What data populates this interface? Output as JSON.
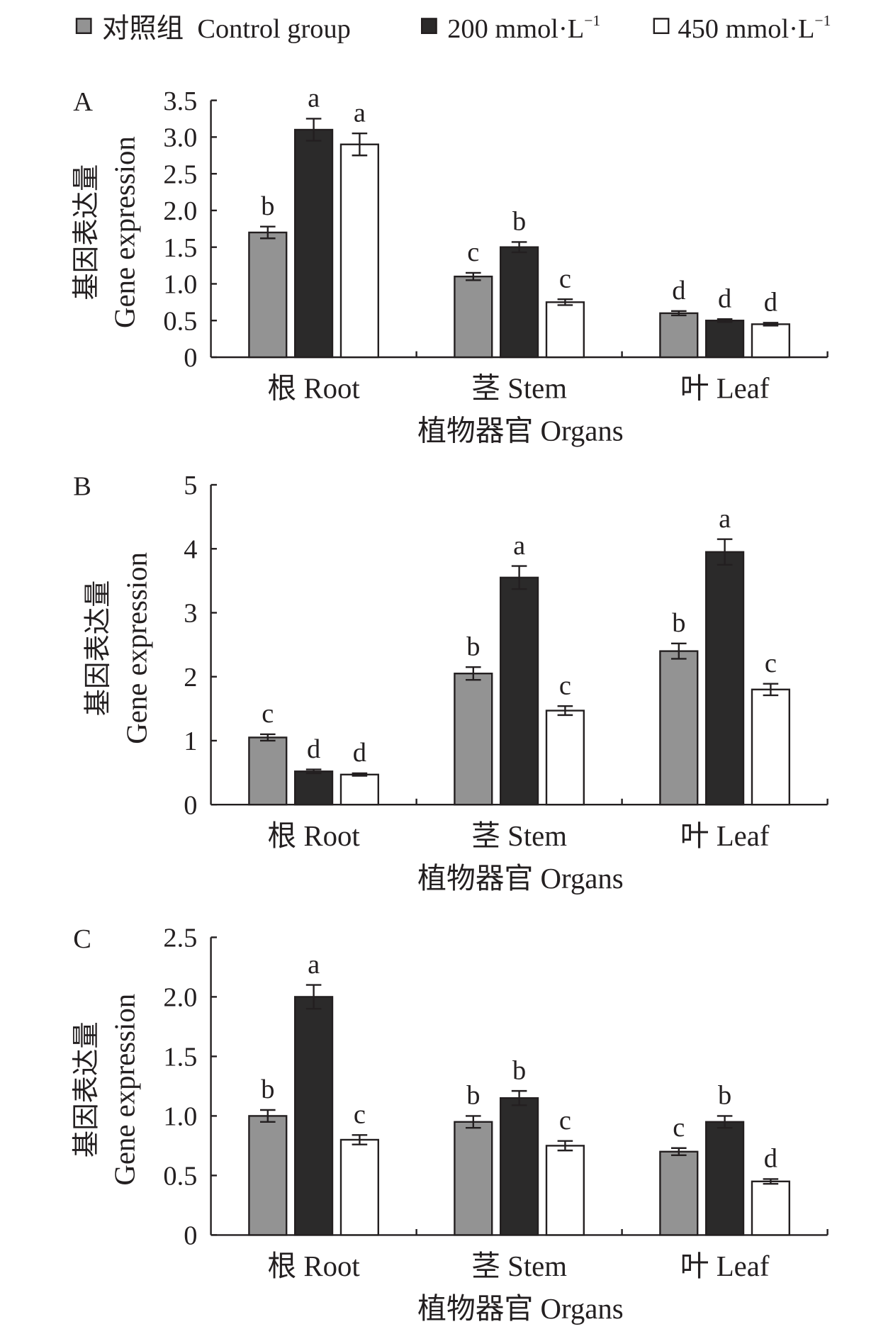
{
  "legend": [
    {
      "label": "对照组  Control group",
      "color": "#939393"
    },
    {
      "label": "200 mmol·L",
      "sup": "−1",
      "color": "#2b2a2a"
    },
    {
      "label": "450 mmol·L",
      "sup": "−1",
      "color": "#ffffff"
    }
  ],
  "chart_data": [
    {
      "type": "bar",
      "panel": "A",
      "ylabel_cn": "基因表达量",
      "ylabel": "Gene expression",
      "xlabel": "植物器官  Organs",
      "categories": [
        "根 Root",
        "茎 Stem",
        "叶 Leaf"
      ],
      "ylim": [
        0,
        3.5
      ],
      "yticks": [
        "0",
        "0.5",
        "1.0",
        "1.5",
        "2.0",
        "2.5",
        "3.0",
        "3.5"
      ],
      "series": [
        {
          "name": "Control group",
          "values": [
            1.7,
            1.1,
            0.6
          ],
          "errors": [
            0.08,
            0.05,
            0.03
          ],
          "letters": [
            "b",
            "c",
            "d"
          ]
        },
        {
          "name": "200 mmol·L−1",
          "values": [
            3.1,
            1.5,
            0.5
          ],
          "errors": [
            0.15,
            0.07,
            0.02
          ],
          "letters": [
            "a",
            "b",
            "d"
          ]
        },
        {
          "name": "450 mmol·L−1",
          "values": [
            2.9,
            0.75,
            0.45
          ],
          "errors": [
            0.15,
            0.04,
            0.02
          ],
          "letters": [
            "a",
            "c",
            "d"
          ]
        }
      ]
    },
    {
      "type": "bar",
      "panel": "B",
      "ylabel_cn": "基因表达量",
      "ylabel": "Gene expression",
      "xlabel": "植物器官  Organs",
      "categories": [
        "根 Root",
        "茎 Stem",
        "叶 Leaf"
      ],
      "ylim": [
        0,
        5
      ],
      "yticks": [
        "0",
        "1",
        "2",
        "3",
        "4",
        "5"
      ],
      "series": [
        {
          "name": "Control group",
          "values": [
            1.05,
            2.05,
            2.4
          ],
          "errors": [
            0.05,
            0.1,
            0.12
          ],
          "letters": [
            "c",
            "b",
            "b"
          ]
        },
        {
          "name": "200 mmol·L−1",
          "values": [
            0.52,
            3.55,
            3.95
          ],
          "errors": [
            0.03,
            0.18,
            0.2
          ],
          "letters": [
            "d",
            "a",
            "a"
          ]
        },
        {
          "name": "450 mmol·L−1",
          "values": [
            0.47,
            1.47,
            1.8
          ],
          "errors": [
            0.02,
            0.07,
            0.09
          ],
          "letters": [
            "d",
            "c",
            "c"
          ]
        }
      ]
    },
    {
      "type": "bar",
      "panel": "C",
      "ylabel_cn": "基因表达量",
      "ylabel": "Gene expression",
      "xlabel": "植物器官  Organs",
      "categories": [
        "根 Root",
        "茎 Stem",
        "叶 Leaf"
      ],
      "ylim": [
        0,
        2.5
      ],
      "yticks": [
        "0",
        "0.5",
        "1.0",
        "1.5",
        "2.0",
        "2.5"
      ],
      "series": [
        {
          "name": "Control group",
          "values": [
            1.0,
            0.95,
            0.7
          ],
          "errors": [
            0.05,
            0.05,
            0.03
          ],
          "letters": [
            "b",
            "b",
            "c"
          ]
        },
        {
          "name": "200 mmol·L−1",
          "values": [
            2.0,
            1.15,
            0.95
          ],
          "errors": [
            0.1,
            0.06,
            0.05
          ],
          "letters": [
            "a",
            "b",
            "b"
          ]
        },
        {
          "name": "450 mmol·L−1",
          "values": [
            0.8,
            0.75,
            0.45
          ],
          "errors": [
            0.04,
            0.04,
            0.02
          ],
          "letters": [
            "c",
            "c",
            "d"
          ]
        }
      ]
    }
  ]
}
